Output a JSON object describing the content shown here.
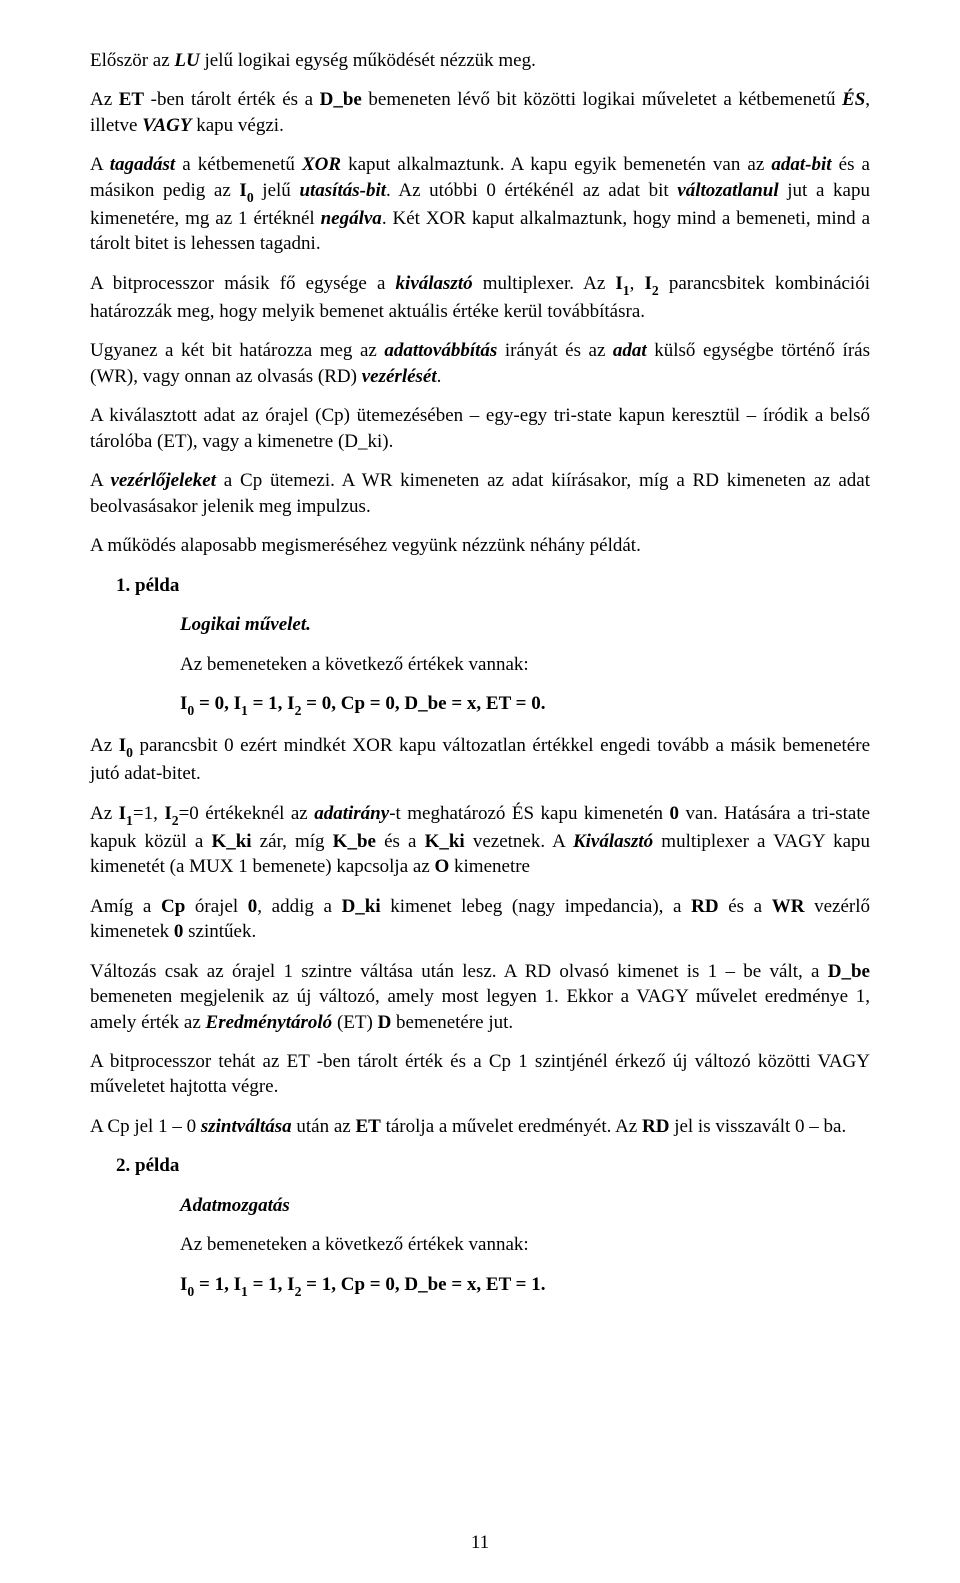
{
  "p1_a": "Először az ",
  "p1_b": "LU",
  "p1_c": " jelű logikai egység működését nézzük meg.",
  "p2_a": "Az ",
  "p2_b": "ET",
  "p2_c": " -ben tárolt érték és a ",
  "p2_d": "D_be",
  "p2_e": " bemeneten lévő bit  közötti logikai műveletet a kétbemenetű ",
  "p2_f": "ÉS",
  "p2_g": ", illetve ",
  "p2_h": "VAGY",
  "p2_i": " kapu végzi.",
  "p3_a": "A ",
  "p3_b": "tagadást",
  "p3_c": "  a kétbemenetű ",
  "p3_d": "XOR",
  "p3_e": " kaput alkalmaztunk. A kapu egyik bemenetén van az ",
  "p3_f": "adat-bit",
  "p3_g": " és a másikon pedig az ",
  "p3_h": "I",
  "p3_h2": "0",
  "p3_i": " jelű ",
  "p3_j": "utasítás-bit",
  "p3_k": ". Az utóbbi 0 értékénél az adat bit ",
  "p3_l": "változatlanul",
  "p3_m": " jut a kapu kimenetére, mg az 1 értéknél ",
  "p3_n": "negálva",
  "p3_o": ". Két XOR kaput alkalmaztunk, hogy mind a bemeneti, mind a tárolt bitet is lehessen tagadni.",
  "p4_a": "A bitprocesszor másik fő egysége a ",
  "p4_b": "kiválasztó",
  "p4_c": " multiplexer. Az ",
  "p4_d": "I",
  "p4_d2": "1",
  "p4_e": ", ",
  "p4_f": "I",
  "p4_f2": "2",
  "p4_g": " parancsbitek kombinációi határozzák meg, hogy melyik bemenet aktuális értéke kerül továbbításra.",
  "p5_a": "Ugyanez a két bit határozza meg az ",
  "p5_b": "adattovábbítás",
  "p5_c": " irányát és az ",
  "p5_d": "adat",
  "p5_e": " külső egységbe történő írás (WR), vagy onnan az olvasás (RD) ",
  "p5_f": "vezérlését",
  "p5_g": ".",
  "p6": "A kiválasztott adat az órajel (Cp) ütemezésében – egy-egy tri-state kapun keresztül – íródik a belső tárolóba (ET), vagy a kimenetre (D_ki).",
  "p7_a": "A ",
  "p7_b": "vezérlőjeleket",
  "p7_c": " a Cp ütemezi. A WR kimeneten az adat kiírásakor, míg a RD kimeneten az adat beolvasásakor jelenik meg impulzus.",
  "p8": "A működés alaposabb megismeréséhez vegyünk nézzünk néhány példát.",
  "ex1_label": "1. példa",
  "ex1_title": "Logikai művelet.",
  "ex1_line": "Az bemeneteken a következő értékek vannak:",
  "ex1_vals_a": "I",
  "ex1_vals_a2": "0",
  "ex1_vals_b": " = 0, I",
  "ex1_vals_b2": "1",
  "ex1_vals_c": " = 1, I",
  "ex1_vals_c2": "2",
  "ex1_vals_d": " = 0, Cp = 0, D_be = x, ET = 0.",
  "p9_a": "Az ",
  "p9_b": "I",
  "p9_b2": "0",
  "p9_c": " parancsbit 0 ezért mindkét XOR kapu változatlan értékkel engedi tovább a másik bemenetére jutó adat-bitet.",
  "p10_a": "Az ",
  "p10_b": "I",
  "p10_b2": "1",
  "p10_c": "=1, ",
  "p10_d": "I",
  "p10_d2": "2",
  "p10_e": "=0",
  "p10_f": " értékeknél az ",
  "p10_g": "adatirány",
  "p10_h": "-t meghatározó ÉS kapu kimenetén ",
  "p10_i": "0",
  "p10_j": " van. Hatására a tri-state kapuk közül a ",
  "p10_k": "K_ki",
  "p10_l": "  zár, míg ",
  "p10_m": "K_be",
  "p10_n": " és a ",
  "p10_o": "K_ki",
  "p10_p": " vezetnek. A ",
  "p10_q": "Kiválasztó",
  "p10_r": " multiplexer a VAGY kapu kimenetét (a MUX 1 bemenete) kapcsolja az ",
  "p10_s": "O",
  "p10_t": " kimenetre",
  "p11_a": "Amíg a ",
  "p11_b": "Cp",
  "p11_c": " órajel ",
  "p11_d": "0",
  "p11_e": ", addig a ",
  "p11_f": "D_ki",
  "p11_g": " kimenet lebeg (nagy impedancia), a ",
  "p11_h": "RD",
  "p11_i": " és a ",
  "p11_j": "WR",
  "p11_k": " vezérlő kimenetek ",
  "p11_l": "0",
  "p11_m": " szintűek.",
  "p12_a": "Változás csak az órajel 1 szintre váltása után lesz. A RD olvasó kimenet is 1 – be vált, a ",
  "p12_b": "D_be",
  "p12_c": " bemeneten megjelenik az új változó, amely most legyen 1. Ekkor a VAGY művelet eredménye 1, amely érték az ",
  "p12_d": "Eredménytároló",
  "p12_e": " (ET) ",
  "p12_f": "D",
  "p12_g": " bemenetére jut.",
  "p13": "A bitprocesszor tehát az ET -ben tárolt érték és a Cp 1 szintjénél érkező új változó közötti VAGY műveletet hajtotta végre.",
  "p14_a": "A Cp jel 1 – 0 ",
  "p14_b": "szintváltása",
  "p14_c": " után az ",
  "p14_d": "ET",
  "p14_e": " tárolja  a művelet eredményét. Az ",
  "p14_f": "RD",
  "p14_g": " jel is visszavált 0 – ba.",
  "ex2_label": "2. példa",
  "ex2_title": "Adatmozgatás",
  "ex2_line": "Az bemeneteken a következő értékek vannak:",
  "ex2_vals_a": "I",
  "ex2_vals_a2": "0",
  "ex2_vals_b": " = 1, I",
  "ex2_vals_b2": "1",
  "ex2_vals_c": " = 1, I",
  "ex2_vals_c2": "2",
  "ex2_vals_d": " = 1, Cp = 0, D_be = x, ET = 1.",
  "page_number": "11"
}
